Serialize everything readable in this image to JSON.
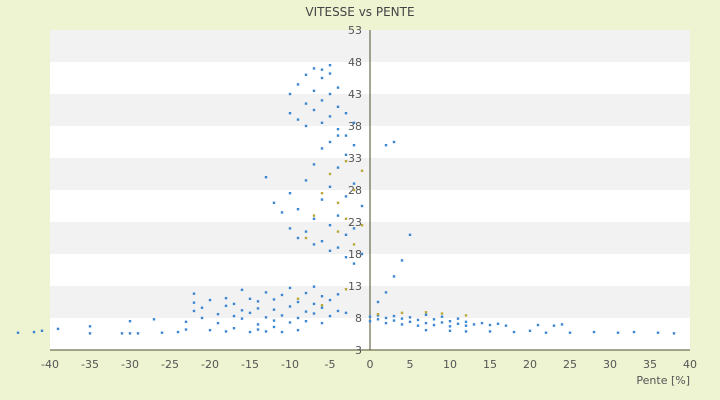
{
  "chart_data": {
    "type": "scatter",
    "title": "VITESSE vs PENTE",
    "xlabel": "Pente [%]",
    "ylabel": "",
    "xlim": [
      -40,
      40
    ],
    "ylim": [
      3,
      53
    ],
    "x_ticks": [
      -40,
      -35,
      -30,
      -25,
      -20,
      -15,
      -10,
      -5,
      0,
      5,
      10,
      15,
      20,
      25,
      30,
      35,
      40
    ],
    "y_ticks": [
      3,
      8,
      13,
      18,
      23,
      28,
      33,
      38,
      43,
      48,
      53
    ],
    "grid": "horizontal alternating bands",
    "colors": {
      "background": "#eef3d2",
      "plot_band_light": "#ffffff",
      "plot_band_dark": "#f2f2f2",
      "axis": "#4d4d2a",
      "series_primary": "#3a86d0",
      "series_secondary": "#b8a83a"
    },
    "series": [
      {
        "name": "",
        "color": "#3a86d0",
        "points": [
          [
            -44,
            5.7
          ],
          [
            -42,
            5.8
          ],
          [
            -41,
            6.0
          ],
          [
            -39,
            6.3
          ],
          [
            -35,
            5.6
          ],
          [
            -35,
            6.7
          ],
          [
            -31,
            5.6
          ],
          [
            -30,
            5.6
          ],
          [
            -30,
            7.5
          ],
          [
            -29,
            5.6
          ],
          [
            -27,
            7.8
          ],
          [
            -26,
            5.7
          ],
          [
            -24,
            5.8
          ],
          [
            -23,
            6.2
          ],
          [
            -23,
            7.4
          ],
          [
            -22,
            9.1
          ],
          [
            -22,
            10.4
          ],
          [
            -22,
            11.8
          ],
          [
            -21,
            8.0
          ],
          [
            -21,
            9.6
          ],
          [
            -20,
            10.8
          ],
          [
            -20,
            6.1
          ],
          [
            -19,
            8.6
          ],
          [
            -19,
            7.2
          ],
          [
            -18,
            5.9
          ],
          [
            -18,
            9.9
          ],
          [
            -18,
            11.1
          ],
          [
            -17,
            8.3
          ],
          [
            -17,
            10.2
          ],
          [
            -17,
            6.4
          ],
          [
            -16,
            7.9
          ],
          [
            -16,
            9.2
          ],
          [
            -16,
            12.4
          ],
          [
            -15,
            5.8
          ],
          [
            -15,
            8.8
          ],
          [
            -15,
            11.0
          ],
          [
            -14,
            7.0
          ],
          [
            -14,
            9.5
          ],
          [
            -14,
            10.6
          ],
          [
            -14,
            6.2
          ],
          [
            -13,
            8.1
          ],
          [
            -13,
            12.0
          ],
          [
            -13,
            5.9
          ],
          [
            -12,
            7.6
          ],
          [
            -12,
            9.3
          ],
          [
            -12,
            10.9
          ],
          [
            -12,
            6.6
          ],
          [
            -11,
            8.4
          ],
          [
            -11,
            11.6
          ],
          [
            -11,
            5.8
          ],
          [
            -10,
            7.3
          ],
          [
            -10,
            9.8
          ],
          [
            -10,
            12.7
          ],
          [
            -9,
            8.0
          ],
          [
            -9,
            10.5
          ],
          [
            -9,
            6.1
          ],
          [
            -8,
            9.0
          ],
          [
            -8,
            11.9
          ],
          [
            -8,
            7.5
          ],
          [
            -7,
            10.2
          ],
          [
            -7,
            12.9
          ],
          [
            -7,
            8.7
          ],
          [
            -6,
            11.4
          ],
          [
            -6,
            9.6
          ],
          [
            -6,
            7.2
          ],
          [
            -5,
            10.8
          ],
          [
            -5,
            8.3
          ],
          [
            -4,
            9.1
          ],
          [
            -4,
            11.7
          ],
          [
            -3,
            8.8
          ],
          [
            -13,
            30.0
          ],
          [
            -12,
            26.0
          ],
          [
            -11,
            24.5
          ],
          [
            -10,
            22.0
          ],
          [
            -10,
            27.5
          ],
          [
            -9,
            20.5
          ],
          [
            -9,
            25.0
          ],
          [
            -8,
            21.5
          ],
          [
            -8,
            29.5
          ],
          [
            -7,
            19.5
          ],
          [
            -7,
            23.5
          ],
          [
            -7,
            32.0
          ],
          [
            -6,
            20.0
          ],
          [
            -6,
            26.5
          ],
          [
            -6,
            34.5
          ],
          [
            -5,
            18.5
          ],
          [
            -5,
            22.5
          ],
          [
            -5,
            28.5
          ],
          [
            -5,
            35.5
          ],
          [
            -4,
            19.0
          ],
          [
            -4,
            24.0
          ],
          [
            -4,
            31.5
          ],
          [
            -4,
            36.5
          ],
          [
            -3,
            17.5
          ],
          [
            -3,
            21.0
          ],
          [
            -3,
            27.0
          ],
          [
            -3,
            33.5
          ],
          [
            -2,
            16.5
          ],
          [
            -2,
            22.0
          ],
          [
            -2,
            29.0
          ],
          [
            -1,
            18.0
          ],
          [
            -1,
            25.5
          ],
          [
            -10,
            40.0
          ],
          [
            -10,
            43.0
          ],
          [
            -9,
            39.0
          ],
          [
            -9,
            44.5
          ],
          [
            -8,
            38.0
          ],
          [
            -8,
            41.5
          ],
          [
            -8,
            46.0
          ],
          [
            -7,
            40.5
          ],
          [
            -7,
            43.5
          ],
          [
            -7,
            47.0
          ],
          [
            -6,
            38.5
          ],
          [
            -6,
            42.0
          ],
          [
            -6,
            45.5
          ],
          [
            -6,
            46.8
          ],
          [
            -5,
            39.5
          ],
          [
            -5,
            43.0
          ],
          [
            -5,
            46.2
          ],
          [
            -5,
            47.5
          ],
          [
            -4,
            37.5
          ],
          [
            -4,
            41.0
          ],
          [
            -4,
            44.0
          ],
          [
            -3,
            36.5
          ],
          [
            -3,
            40.0
          ],
          [
            -2,
            35.0
          ],
          [
            -2,
            38.5
          ],
          [
            0,
            7.5
          ],
          [
            0,
            8.2
          ],
          [
            1,
            7.8
          ],
          [
            1,
            8.4
          ],
          [
            2,
            7.2
          ],
          [
            2,
            8.0
          ],
          [
            3,
            7.6
          ],
          [
            3,
            8.3
          ],
          [
            4,
            7.0
          ],
          [
            4,
            7.9
          ],
          [
            5,
            7.4
          ],
          [
            5,
            8.1
          ],
          [
            6,
            6.8
          ],
          [
            6,
            7.7
          ],
          [
            7,
            7.2
          ],
          [
            7,
            8.5
          ],
          [
            8,
            6.9
          ],
          [
            8,
            7.8
          ],
          [
            9,
            7.3
          ],
          [
            9,
            8.2
          ],
          [
            10,
            6.7
          ],
          [
            10,
            7.5
          ],
          [
            11,
            7.1
          ],
          [
            11,
            7.9
          ],
          [
            12,
            6.8
          ],
          [
            12,
            7.4
          ],
          [
            13,
            7.0
          ],
          [
            14,
            7.2
          ],
          [
            15,
            6.9
          ],
          [
            16,
            7.1
          ],
          [
            17,
            6.8
          ],
          [
            21,
            6.9
          ],
          [
            23,
            6.8
          ],
          [
            24,
            7.0
          ],
          [
            1,
            10.5
          ],
          [
            2,
            12.0
          ],
          [
            3,
            14.5
          ],
          [
            4,
            17.0
          ],
          [
            5,
            21.0
          ],
          [
            2,
            35.0
          ],
          [
            3,
            35.5
          ],
          [
            7,
            6.1
          ],
          [
            12,
            5.9
          ],
          [
            18,
            5.8
          ],
          [
            22,
            5.7
          ],
          [
            25,
            5.7
          ],
          [
            28,
            5.8
          ],
          [
            31,
            5.7
          ],
          [
            33,
            5.8
          ],
          [
            36,
            5.7
          ],
          [
            38,
            5.6
          ],
          [
            20,
            6.0
          ],
          [
            15,
            5.9
          ],
          [
            10,
            6.0
          ]
        ]
      },
      {
        "name": "",
        "color": "#b8a83a",
        "points": [
          [
            -8,
            20.5
          ],
          [
            -7,
            24.0
          ],
          [
            -6,
            27.5
          ],
          [
            -5,
            30.5
          ],
          [
            -4,
            21.5
          ],
          [
            -4,
            26.0
          ],
          [
            -3,
            23.5
          ],
          [
            -3,
            32.5
          ],
          [
            -2,
            19.5
          ],
          [
            -2,
            28.0
          ],
          [
            -1,
            22.5
          ],
          [
            -1,
            31.0
          ],
          [
            -9,
            11.0
          ],
          [
            -6,
            10.0
          ],
          [
            -3,
            12.5
          ],
          [
            1,
            8.6
          ],
          [
            4,
            8.8
          ],
          [
            7,
            8.9
          ],
          [
            9,
            8.7
          ],
          [
            12,
            8.4
          ]
        ]
      }
    ]
  }
}
